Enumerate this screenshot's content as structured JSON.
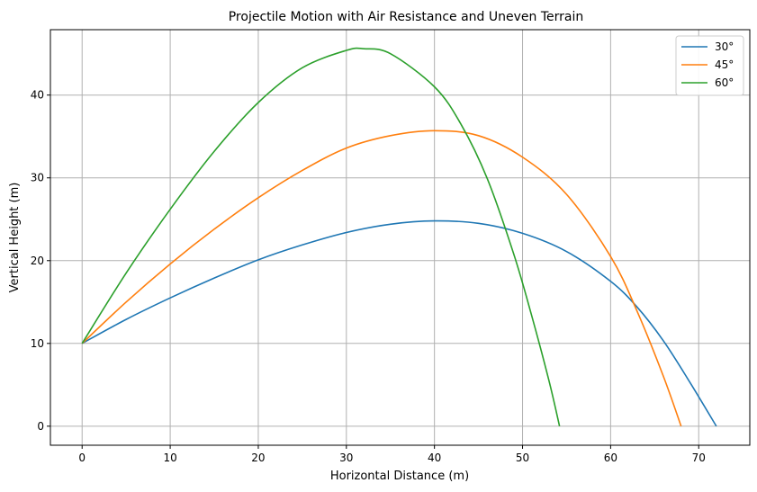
{
  "chart_data": {
    "type": "line",
    "title": "Projectile Motion with Air Resistance and Uneven Terrain",
    "xlabel": "Horizontal Distance (m)",
    "ylabel": "Vertical Height (m)",
    "xlim": [
      -3.6,
      75.8
    ],
    "ylim": [
      -2.3,
      47.9
    ],
    "xticks": [
      0,
      10,
      20,
      30,
      40,
      50,
      60,
      70
    ],
    "yticks": [
      0,
      10,
      20,
      30,
      40
    ],
    "grid": true,
    "legend_position": "top-right",
    "series": [
      {
        "name": "30°",
        "color": "#1f77b4",
        "x": [
          0,
          5,
          10,
          15,
          20,
          25,
          30,
          35,
          40,
          45,
          50,
          55,
          60,
          63,
          66,
          69,
          72
        ],
        "y": [
          10,
          12.9,
          15.5,
          17.9,
          20.1,
          21.9,
          23.4,
          24.4,
          24.8,
          24.5,
          23.3,
          21.1,
          17.5,
          14.4,
          10.3,
          5.3,
          0
        ]
      },
      {
        "name": "45°",
        "color": "#ff7f0e",
        "x": [
          0,
          5,
          10,
          15,
          20,
          25,
          30,
          35,
          40,
          45,
          50,
          55,
          60,
          63,
          66,
          68
        ],
        "y": [
          10,
          15,
          19.6,
          23.8,
          27.6,
          30.9,
          33.6,
          35.1,
          35.7,
          35.1,
          32.5,
          28,
          20.5,
          13.9,
          6,
          0
        ]
      },
      {
        "name": "60°",
        "color": "#2ca02c",
        "x": [
          0,
          5,
          10,
          15,
          20,
          25,
          30,
          32,
          35,
          40,
          43,
          46,
          49,
          51,
          53,
          54.2
        ],
        "y": [
          10,
          18.5,
          26.2,
          33.2,
          39.1,
          43.3,
          45.4,
          45.6,
          45.0,
          41.0,
          36.5,
          29.9,
          20.8,
          13.5,
          5.5,
          0
        ]
      }
    ]
  }
}
